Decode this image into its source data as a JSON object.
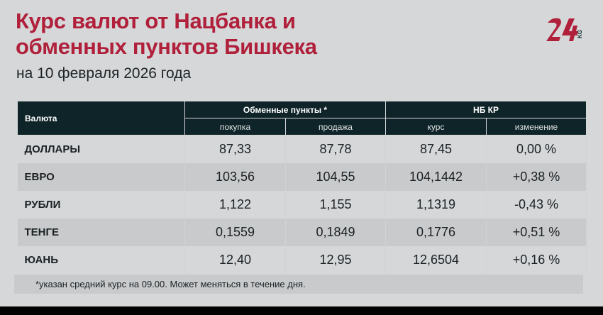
{
  "header": {
    "title_line1": "Курс валют от Нацбанка и",
    "title_line2": "обменных пунктов Бишкека",
    "subtitle": "на 10 февраля 2026 года",
    "logo_text": "24 KG"
  },
  "table": {
    "col_currency": "Валюта",
    "group_exchange": "Обменные пункты *",
    "group_nb": "НБ КР",
    "sub_buy": "покупка",
    "sub_sell": "продажа",
    "sub_rate": "курс",
    "sub_change": "изменение",
    "rows": [
      {
        "name": "ДОЛЛАРЫ",
        "buy": "87,33",
        "sell": "87,78",
        "rate": "87,45",
        "change": "0,00 %"
      },
      {
        "name": "ЕВРО",
        "buy": "103,56",
        "sell": "104,55",
        "rate": "104,1442",
        "change": "+0,38 %"
      },
      {
        "name": "РУБЛИ",
        "buy": "1,122",
        "sell": "1,155",
        "rate": "1,1319",
        "change": "-0,43 %"
      },
      {
        "name": "ТЕНГЕ",
        "buy": "0,1559",
        "sell": "0,1849",
        "rate": "0,1776",
        "change": "+0,51 %"
      },
      {
        "name": "ЮАНЬ",
        "buy": "12,40",
        "sell": "12,95",
        "rate": "12,6504",
        "change": "+0,16 %"
      }
    ]
  },
  "footnote": "*указан средний курс на 09.00. Может меняться в течение дня.",
  "colors": {
    "accent": "#b0203a",
    "header_bg": "#0f2428",
    "background": "#d5d7d9"
  }
}
